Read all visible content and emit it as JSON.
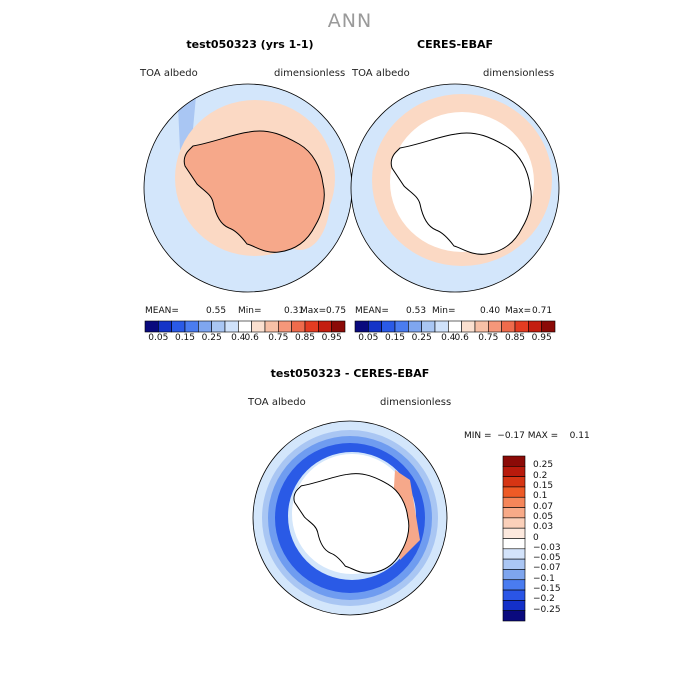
{
  "title": "ANN",
  "panels": [
    {
      "title": "test050323 (yrs 1-1)",
      "variable": "TOA albedo",
      "units": "dimensionless",
      "mean_label": "MEAN=",
      "mean": "0.55",
      "min_label": "Min=",
      "min": "0.31",
      "max_label": "Max=",
      "max": "0.75"
    },
    {
      "title": "CERES-EBAF",
      "variable": "TOA albedo",
      "units": "dimensionless",
      "mean_label": "MEAN=",
      "mean": "0.53",
      "min_label": "Min=",
      "min": "0.40",
      "max_label": "Max=",
      "max": "0.71"
    },
    {
      "title": "test050323 - CERES-EBAF",
      "variable": "TOA albedo",
      "units": "dimensionless",
      "stats": "MIN =  −0.17 MAX =    0.11"
    }
  ],
  "colorbar_top": {
    "ticks": [
      "0.05",
      "0.15",
      "0.25",
      "0.4",
      "0.6",
      "0.75",
      "0.85",
      "0.95"
    ],
    "colors": [
      "#0a0a7e",
      "#1434c8",
      "#2a5ae6",
      "#4a7cf0",
      "#7fa6f0",
      "#a9c6f3",
      "#d0e2fa",
      "#ffffff",
      "#fbe0d0",
      "#f8c0a6",
      "#f5977a",
      "#ee6b4c",
      "#e33c22",
      "#c41e10",
      "#8b0a07"
    ]
  },
  "colorbar_diff": {
    "labels": [
      "0.25",
      "0.2",
      "0.15",
      "0.1",
      "0.07",
      "0.05",
      "0.03",
      "0",
      "−0.03",
      "−0.05",
      "−0.07",
      "−0.1",
      "−0.15",
      "−0.2",
      "−0.25"
    ],
    "colors": [
      "#8b0a07",
      "#b81a0c",
      "#d63514",
      "#ee5a26",
      "#f5865a",
      "#f8aa88",
      "#fbd0ba",
      "#fde9de",
      "#ffffff",
      "#d3e3fb",
      "#aac6f4",
      "#7ea5ee",
      "#4a7cf0",
      "#2a55e6",
      "#1430c8",
      "#0a0a7e"
    ]
  },
  "chart_data": [
    {
      "type": "heatmap",
      "title": "test050323 (yrs 1-1)",
      "projection": "south-polar",
      "variable": "TOA albedo",
      "units": "dimensionless",
      "mean": 0.55,
      "min": 0.31,
      "max": 0.75
    },
    {
      "type": "heatmap",
      "title": "CERES-EBAF",
      "projection": "south-polar",
      "variable": "TOA albedo",
      "units": "dimensionless",
      "mean": 0.53,
      "min": 0.4,
      "max": 0.71
    },
    {
      "type": "heatmap",
      "title": "test050323 - CERES-EBAF",
      "projection": "south-polar",
      "variable": "TOA albedo",
      "units": "dimensionless",
      "min": -0.17,
      "max": 0.11
    }
  ],
  "colors": {
    "pale_blue": "#d3e6fb",
    "peach": "#fbd9c4",
    "salmon": "#f6a88a",
    "blue": "#2a5ae6",
    "mid_blue": "#6f9cf0",
    "light_blue": "#a9c6f3"
  }
}
